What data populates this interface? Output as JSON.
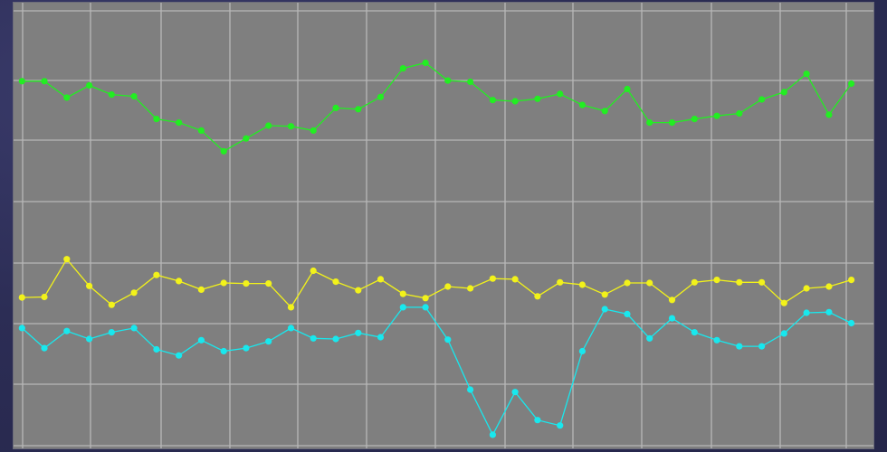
{
  "colors": {
    "background": "#2e2f57",
    "plot_area": "#7f7f7f",
    "grid": "#b8b8b8"
  },
  "chart_data": {
    "type": "line",
    "title": "",
    "xlabel": "",
    "ylabel": "",
    "grid": true,
    "legend": "none",
    "x": [
      1,
      2,
      3,
      4,
      5,
      6,
      7,
      8,
      9,
      10,
      11,
      12,
      13,
      14,
      15,
      16,
      17,
      18,
      19,
      20,
      21,
      22,
      23,
      24,
      25,
      26,
      27,
      28,
      29,
      30,
      31,
      32,
      33,
      34,
      35,
      36,
      37,
      38
    ],
    "xlim": [
      0,
      39
    ],
    "ylim": [
      0,
      7
    ],
    "series": [
      {
        "color": "#22ee22",
        "values": [
          5.98,
          5.98,
          5.71,
          5.91,
          5.76,
          5.73,
          5.36,
          5.3,
          5.17,
          4.83,
          5.04,
          5.25,
          5.24,
          5.17,
          5.54,
          5.52,
          5.72,
          6.19,
          6.28,
          5.99,
          5.97,
          5.67,
          5.65,
          5.69,
          5.77,
          5.59,
          5.49,
          5.85,
          5.3,
          5.3,
          5.36,
          5.41,
          5.45,
          5.68,
          5.8,
          6.1,
          5.43,
          5.94
        ]
      },
      {
        "color": "#f2f21a",
        "values": [
          2.43,
          2.44,
          3.06,
          2.62,
          2.31,
          2.51,
          2.8,
          2.7,
          2.56,
          2.67,
          2.66,
          2.66,
          2.27,
          2.87,
          2.69,
          2.55,
          2.73,
          2.49,
          2.42,
          2.61,
          2.58,
          2.74,
          2.73,
          2.45,
          2.68,
          2.64,
          2.48,
          2.67,
          2.67,
          2.39,
          2.68,
          2.72,
          2.68,
          2.68,
          2.34,
          2.58,
          2.61,
          2.72
        ]
      },
      {
        "color": "#18e8ee",
        "values": [
          1.93,
          1.6,
          1.88,
          1.75,
          1.86,
          1.93,
          1.58,
          1.48,
          1.73,
          1.55,
          1.6,
          1.71,
          1.93,
          1.76,
          1.75,
          1.85,
          1.78,
          2.27,
          2.27,
          1.74,
          0.92,
          0.18,
          0.88,
          0.42,
          0.33,
          1.55,
          2.24,
          2.16,
          1.76,
          2.09,
          1.86,
          1.73,
          1.63,
          1.63,
          1.84,
          2.18,
          2.19,
          2.01
        ]
      }
    ]
  }
}
